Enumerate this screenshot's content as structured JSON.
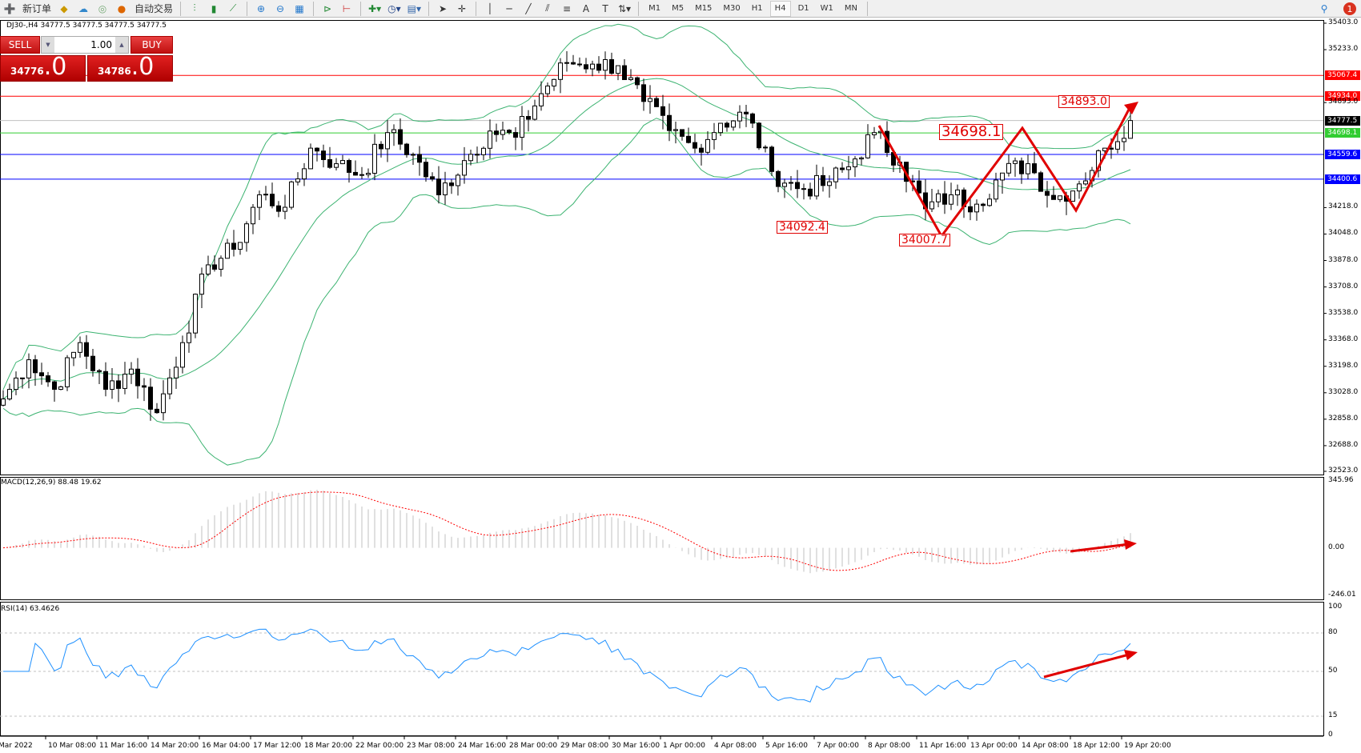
{
  "toolbar": {
    "new_order_label": "新订单",
    "auto_trading_label": "自动交易",
    "timeframes": [
      "M1",
      "M5",
      "M15",
      "M30",
      "H1",
      "H4",
      "D1",
      "W1",
      "MN"
    ],
    "active_timeframe": "H4",
    "notification_count": "1",
    "icons": [
      "new-order-icon",
      "market-watch-icon",
      "navigator-icon",
      "signals-icon",
      "auto-trading-icon",
      "bar-chart-icon",
      "candlestick-icon",
      "line-chart-icon",
      "zoom-in-icon",
      "zoom-out-icon",
      "tile-windows-icon",
      "autoscroll-icon",
      "chart-shift-icon",
      "indicators-icon",
      "periods-icon",
      "templates-icon",
      "cursor-icon",
      "crosshair-icon",
      "vertical-line-icon",
      "horizontal-line-icon",
      "trendline-icon",
      "equidistant-channel-icon",
      "fibonacci-icon",
      "text-icon",
      "text-label-icon",
      "arrows-icon",
      "search-icon",
      "chat-icon"
    ]
  },
  "chart": {
    "symbol_line": "DJ30-,H4  34777.5 34777.5 34777.5 34777.5",
    "one_click": {
      "sell_label": "SELL",
      "buy_label": "BUY",
      "lot": "1.00",
      "sell_price_main": "34776",
      "sell_price_frac": ".0",
      "buy_price_main": "34786",
      "buy_price_frac": ".0"
    },
    "macd_label": "MACD(12,26,9) 88.48 19.62",
    "rsi_label": "RSI(14) 63.4626",
    "annotations": [
      "34698.1",
      "34092.4",
      "34007.7",
      "34893.0"
    ]
  },
  "chart_data": {
    "type": "candlestick",
    "timeframe": "H4",
    "close_series": [
      32988,
      33240,
      33050,
      33350,
      33050,
      33180,
      32900,
      33350,
      33850,
      33950,
      34300,
      34220,
      34600,
      34500,
      34430,
      34700,
      34560,
      34300,
      34520,
      34710,
      34670,
      34950,
      35150,
      35140,
      35130,
      34900,
      34713,
      34600,
      34760,
      34820,
      34450,
      34340,
      34360,
      34480,
      34700,
      34510,
      34210,
      34300,
      34240,
      34440,
      34500,
      34270,
      34370,
      34600,
      34777.5
    ],
    "price_axis": [
      "35403.0",
      "35233.0",
      "35067.4",
      "34934.0",
      "34893.0",
      "34777.5",
      "34698.1",
      "34559.6",
      "34400.6",
      "34218.0",
      "34048.0",
      "33878.0",
      "33708.0",
      "33538.0",
      "33368.0",
      "33198.0",
      "33028.0",
      "32858.0",
      "32688.0",
      "32523.0"
    ],
    "price_range": [
      32523.0,
      35403.0
    ],
    "horizontal_lines": [
      {
        "price": "35067.4",
        "color": "#ff0000"
      },
      {
        "price": "34934.0",
        "color": "#ff0000"
      },
      {
        "price": "34777.5",
        "color": "#000000"
      },
      {
        "price": "34698.1",
        "color": "#32cd32"
      },
      {
        "price": "34559.6",
        "color": "#0000ff"
      },
      {
        "price": "34400.6",
        "color": "#0000ff"
      }
    ],
    "macd_axis": [
      "345.96",
      "0.00",
      "-246.01"
    ],
    "macd_range": [
      -246.01,
      345.96
    ],
    "rsi_axis": [
      "100",
      "80",
      "50",
      "15",
      "0"
    ],
    "time_axis": [
      "Mar 2022",
      "10 Mar 08:00",
      "11 Mar 16:00",
      "14 Mar 20:00",
      "16 Mar 04:00",
      "17 Mar 12:00",
      "18 Mar 20:00",
      "22 Mar 00:00",
      "23 Mar 08:00",
      "24 Mar 16:00",
      "28 Mar 00:00",
      "29 Mar 08:00",
      "30 Mar 16:00",
      "1 Apr 00:00",
      "4 Apr 08:00",
      "5 Apr 16:00",
      "7 Apr 00:00",
      "8 Apr 08:00",
      "11 Apr 16:00",
      "13 Apr 00:00",
      "14 Apr 08:00",
      "18 Apr 12:00",
      "19 Apr 20:00"
    ],
    "colors": {
      "bands": "#3cb371",
      "macd_signal": "#ff0000",
      "macd_hist": "#c0c0c0",
      "rsi": "#1e90ff",
      "annotation": "#e00000"
    }
  }
}
